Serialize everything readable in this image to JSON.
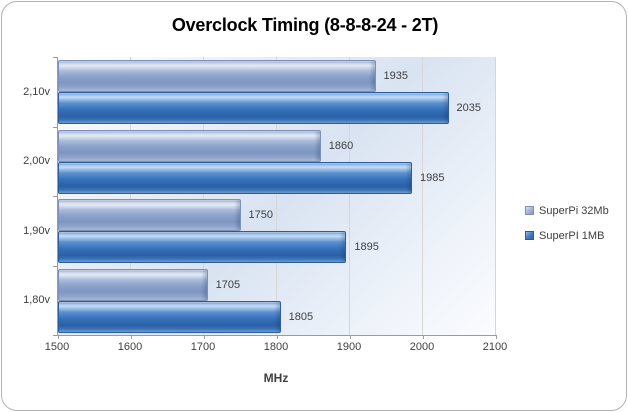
{
  "title": "Overclock Timing (8-8-8-24 - 2T)",
  "chart_data": {
    "type": "bar",
    "orientation": "horizontal",
    "title": "Overclock Timing (8-8-8-24 - 2T)",
    "categories": [
      "2,10v",
      "2,00v",
      "1,90v",
      "1,80v"
    ],
    "series": [
      {
        "name": "SuperPi 32Mb",
        "values": [
          1935,
          1860,
          1750,
          1705
        ],
        "color": "#95aacc"
      },
      {
        "name": "SuperPI 1MB",
        "values": [
          2035,
          1985,
          1895,
          1805
        ],
        "color": "#2e69b0"
      }
    ],
    "xlabel": "MHz",
    "xlim": [
      1500,
      2100
    ],
    "x_ticks": [
      1500,
      1600,
      1700,
      1800,
      1900,
      2000,
      2100
    ],
    "grid": true,
    "data_labels": true,
    "legend_position": "right"
  },
  "colors": {
    "series_light": "#95aacc",
    "series_dark": "#2e69b0",
    "gridline": "#d6d6d6",
    "axis_line": "#9b9b9b",
    "label_text": "#3f3f3f",
    "plot_gradient_mid": "#d9e3f1"
  }
}
